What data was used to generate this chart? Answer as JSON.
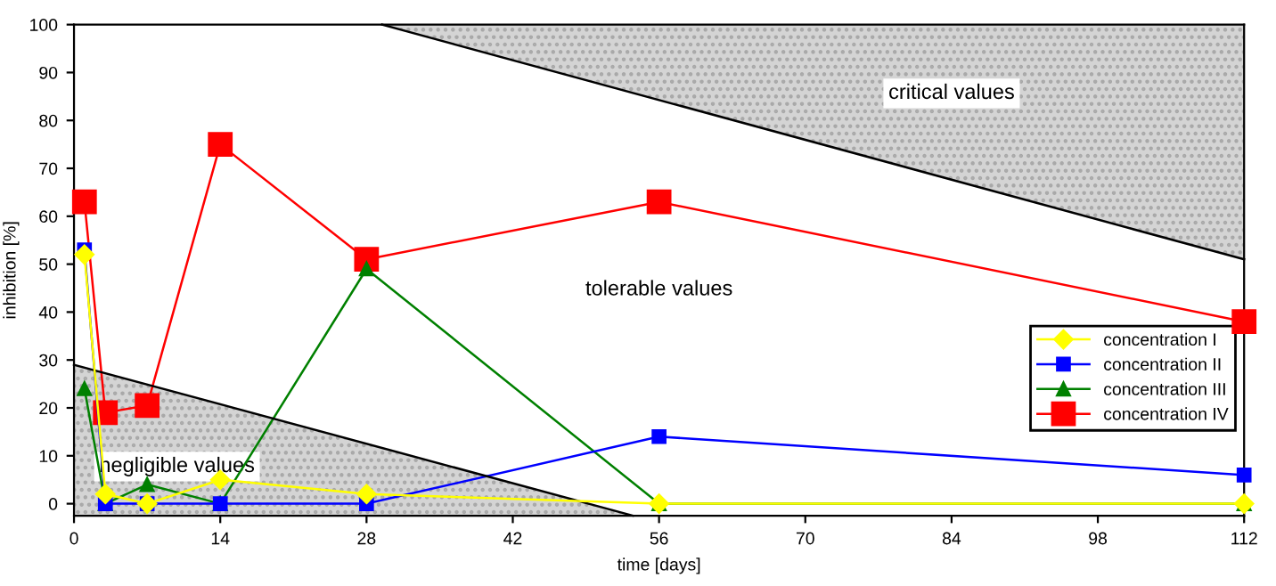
{
  "chart_data": {
    "type": "line",
    "xlabel": "time [days]",
    "ylabel": "inhibition [%]",
    "xlim": [
      0,
      112
    ],
    "ylim": [
      -2.5,
      100
    ],
    "xticks": [
      0,
      14,
      28,
      42,
      56,
      70,
      84,
      98,
      112
    ],
    "yticks": [
      0,
      10,
      20,
      30,
      40,
      50,
      60,
      70,
      80,
      90,
      100
    ],
    "grid": false,
    "legend": "right",
    "x": [
      1,
      3,
      7,
      14,
      28,
      56,
      112
    ],
    "series": [
      {
        "type": "line",
        "color": "#000000",
        "x": [
          29.5,
          112
        ],
        "values": [
          100,
          51
        ],
        "lower": [
          100,
          51
        ],
        "upper": [
          100,
          100
        ],
        "marker": "none"
      },
      {
        "type": "line",
        "color": "#000000",
        "x": [
          0,
          53.5
        ],
        "values": [
          29,
          -2.5
        ],
        "lower": [
          -2.5,
          -2.5
        ],
        "upper": [
          29,
          -2.5
        ],
        "marker": "none"
      },
      {
        "name": "concentration I",
        "color": "#ffff00",
        "marker": "diamond",
        "values": [
          52,
          2,
          0,
          5,
          2,
          0,
          0
        ]
      },
      {
        "name": "concentration II",
        "color": "#0000ff",
        "marker": "square",
        "values": [
          53,
          0,
          0,
          0,
          0,
          14,
          6
        ]
      },
      {
        "name": "concentration III",
        "color": "#008000",
        "marker": "triangle",
        "values": [
          24,
          0,
          4,
          0,
          49,
          0,
          0
        ]
      },
      {
        "name": "concentration IV",
        "color": "#ff0000",
        "marker": "square",
        "values": [
          63,
          19,
          20.5,
          75,
          51,
          63,
          38
        ]
      }
    ],
    "annotations": [
      "critical values",
      "tolerable values",
      "negligible values"
    ]
  }
}
